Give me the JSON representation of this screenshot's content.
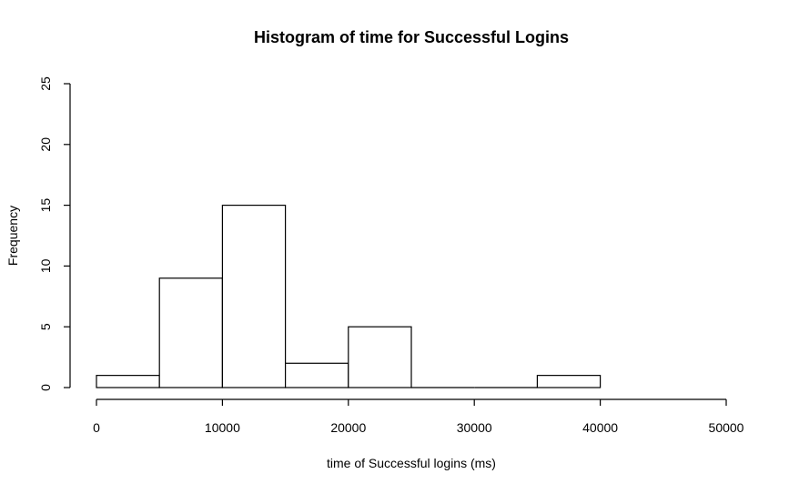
{
  "chart_data": {
    "type": "bar",
    "title": "Histogram of time for Successful Logins",
    "xlabel": "time of Successful logins (ms)",
    "ylabel": "Frequency",
    "bins": [
      {
        "start": 0,
        "end": 5000,
        "count": 1
      },
      {
        "start": 5000,
        "end": 10000,
        "count": 9
      },
      {
        "start": 10000,
        "end": 15000,
        "count": 15
      },
      {
        "start": 15000,
        "end": 20000,
        "count": 2
      },
      {
        "start": 20000,
        "end": 25000,
        "count": 5
      },
      {
        "start": 25000,
        "end": 30000,
        "count": 0
      },
      {
        "start": 30000,
        "end": 35000,
        "count": 0
      },
      {
        "start": 35000,
        "end": 40000,
        "count": 1
      }
    ],
    "xlim": [
      0,
      50000
    ],
    "ylim": [
      0,
      25
    ],
    "xticks": [
      0,
      10000,
      20000,
      30000,
      40000,
      50000
    ],
    "yticks": [
      0,
      5,
      10,
      15,
      20,
      25
    ],
    "xtick_labels": [
      "0",
      "10000",
      "20000",
      "30000",
      "40000",
      "50000"
    ],
    "ytick_labels": [
      "0",
      "5",
      "10",
      "15",
      "20",
      "25"
    ],
    "grid": false,
    "legend": "none"
  }
}
